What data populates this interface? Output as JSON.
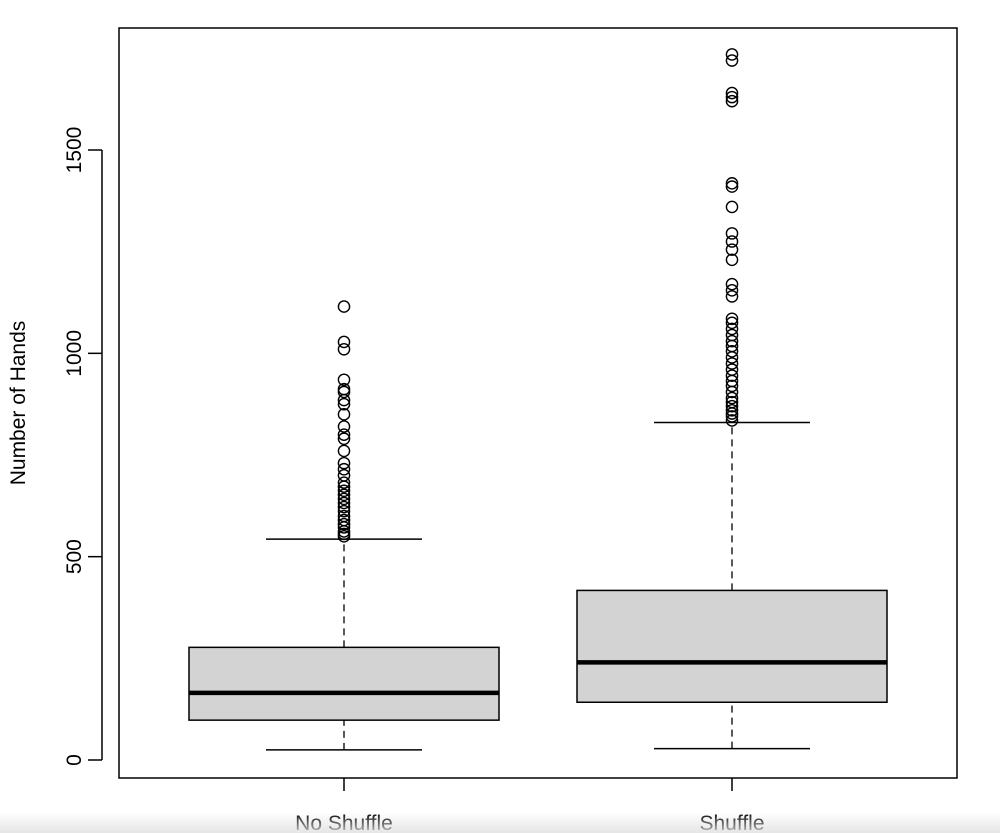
{
  "chart_data": {
    "type": "box",
    "xlabel": "",
    "ylabel": "Number of Hands",
    "ylim": [
      -40,
      1800
    ],
    "yticks": [
      0,
      500,
      1000,
      1500
    ],
    "grid": false,
    "colors": {
      "box_fill": "#d3d3d3",
      "stroke": "#000000"
    },
    "groups": [
      {
        "label": "No Shuffle",
        "whisker_low": 25,
        "q1": 98,
        "median": 165,
        "q3": 277,
        "whisker_high": 543,
        "outliers": [
          550,
          556,
          562,
          572,
          580,
          590,
          600,
          612,
          622,
          632,
          642,
          652,
          662,
          672,
          682,
          700,
          715,
          730,
          760,
          790,
          800,
          820,
          850,
          875,
          885,
          905,
          912,
          935,
          1010,
          1028,
          1115
        ]
      },
      {
        "label": "Shuffle",
        "whisker_low": 28,
        "q1": 142,
        "median": 240,
        "q3": 417,
        "whisker_high": 830,
        "outliers": [
          835,
          845,
          852,
          860,
          870,
          880,
          890,
          905,
          920,
          932,
          945,
          960,
          975,
          990,
          1005,
          1018,
          1030,
          1045,
          1060,
          1075,
          1085,
          1140,
          1155,
          1170,
          1230,
          1255,
          1275,
          1295,
          1360,
          1410,
          1418,
          1620,
          1630,
          1640,
          1720,
          1735
        ]
      }
    ]
  }
}
